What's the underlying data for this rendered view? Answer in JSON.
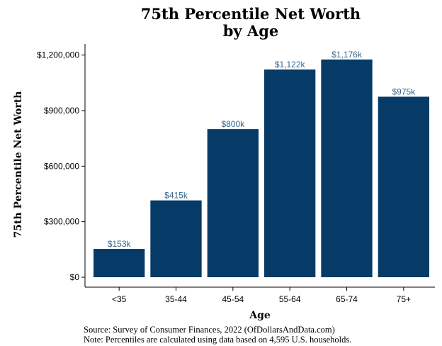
{
  "chart_data": {
    "type": "bar",
    "title": [
      "75th Percentile Net Worth",
      "by Age"
    ],
    "xlabel": "Age",
    "ylabel": "75th Percentile Net Worth",
    "categories": [
      "<35",
      "35-44",
      "45-54",
      "55-64",
      "65-74",
      "75+"
    ],
    "values": [
      153000,
      415000,
      800000,
      1122000,
      1176000,
      975000
    ],
    "data_labels": [
      "$153k",
      "$415k",
      "$800k",
      "$1,122k",
      "$1,176k",
      "$975k"
    ],
    "ylim": [
      0,
      1260000
    ],
    "yticks": [
      0,
      300000,
      600000,
      900000,
      1200000
    ],
    "ytick_labels": [
      "$0",
      "$300,000",
      "$600,000",
      "$900,000",
      "$1,200,000"
    ],
    "grid": false,
    "colors": {
      "bar": "#063a67",
      "label": "#34658f",
      "axis": "#000000"
    }
  },
  "footer": {
    "source": "Source:  Survey of Consumer Finances, 2022 (OfDollarsAndData.com)",
    "note": "Note: Percentiles are calculated using data based on 4,595 U.S. households."
  }
}
